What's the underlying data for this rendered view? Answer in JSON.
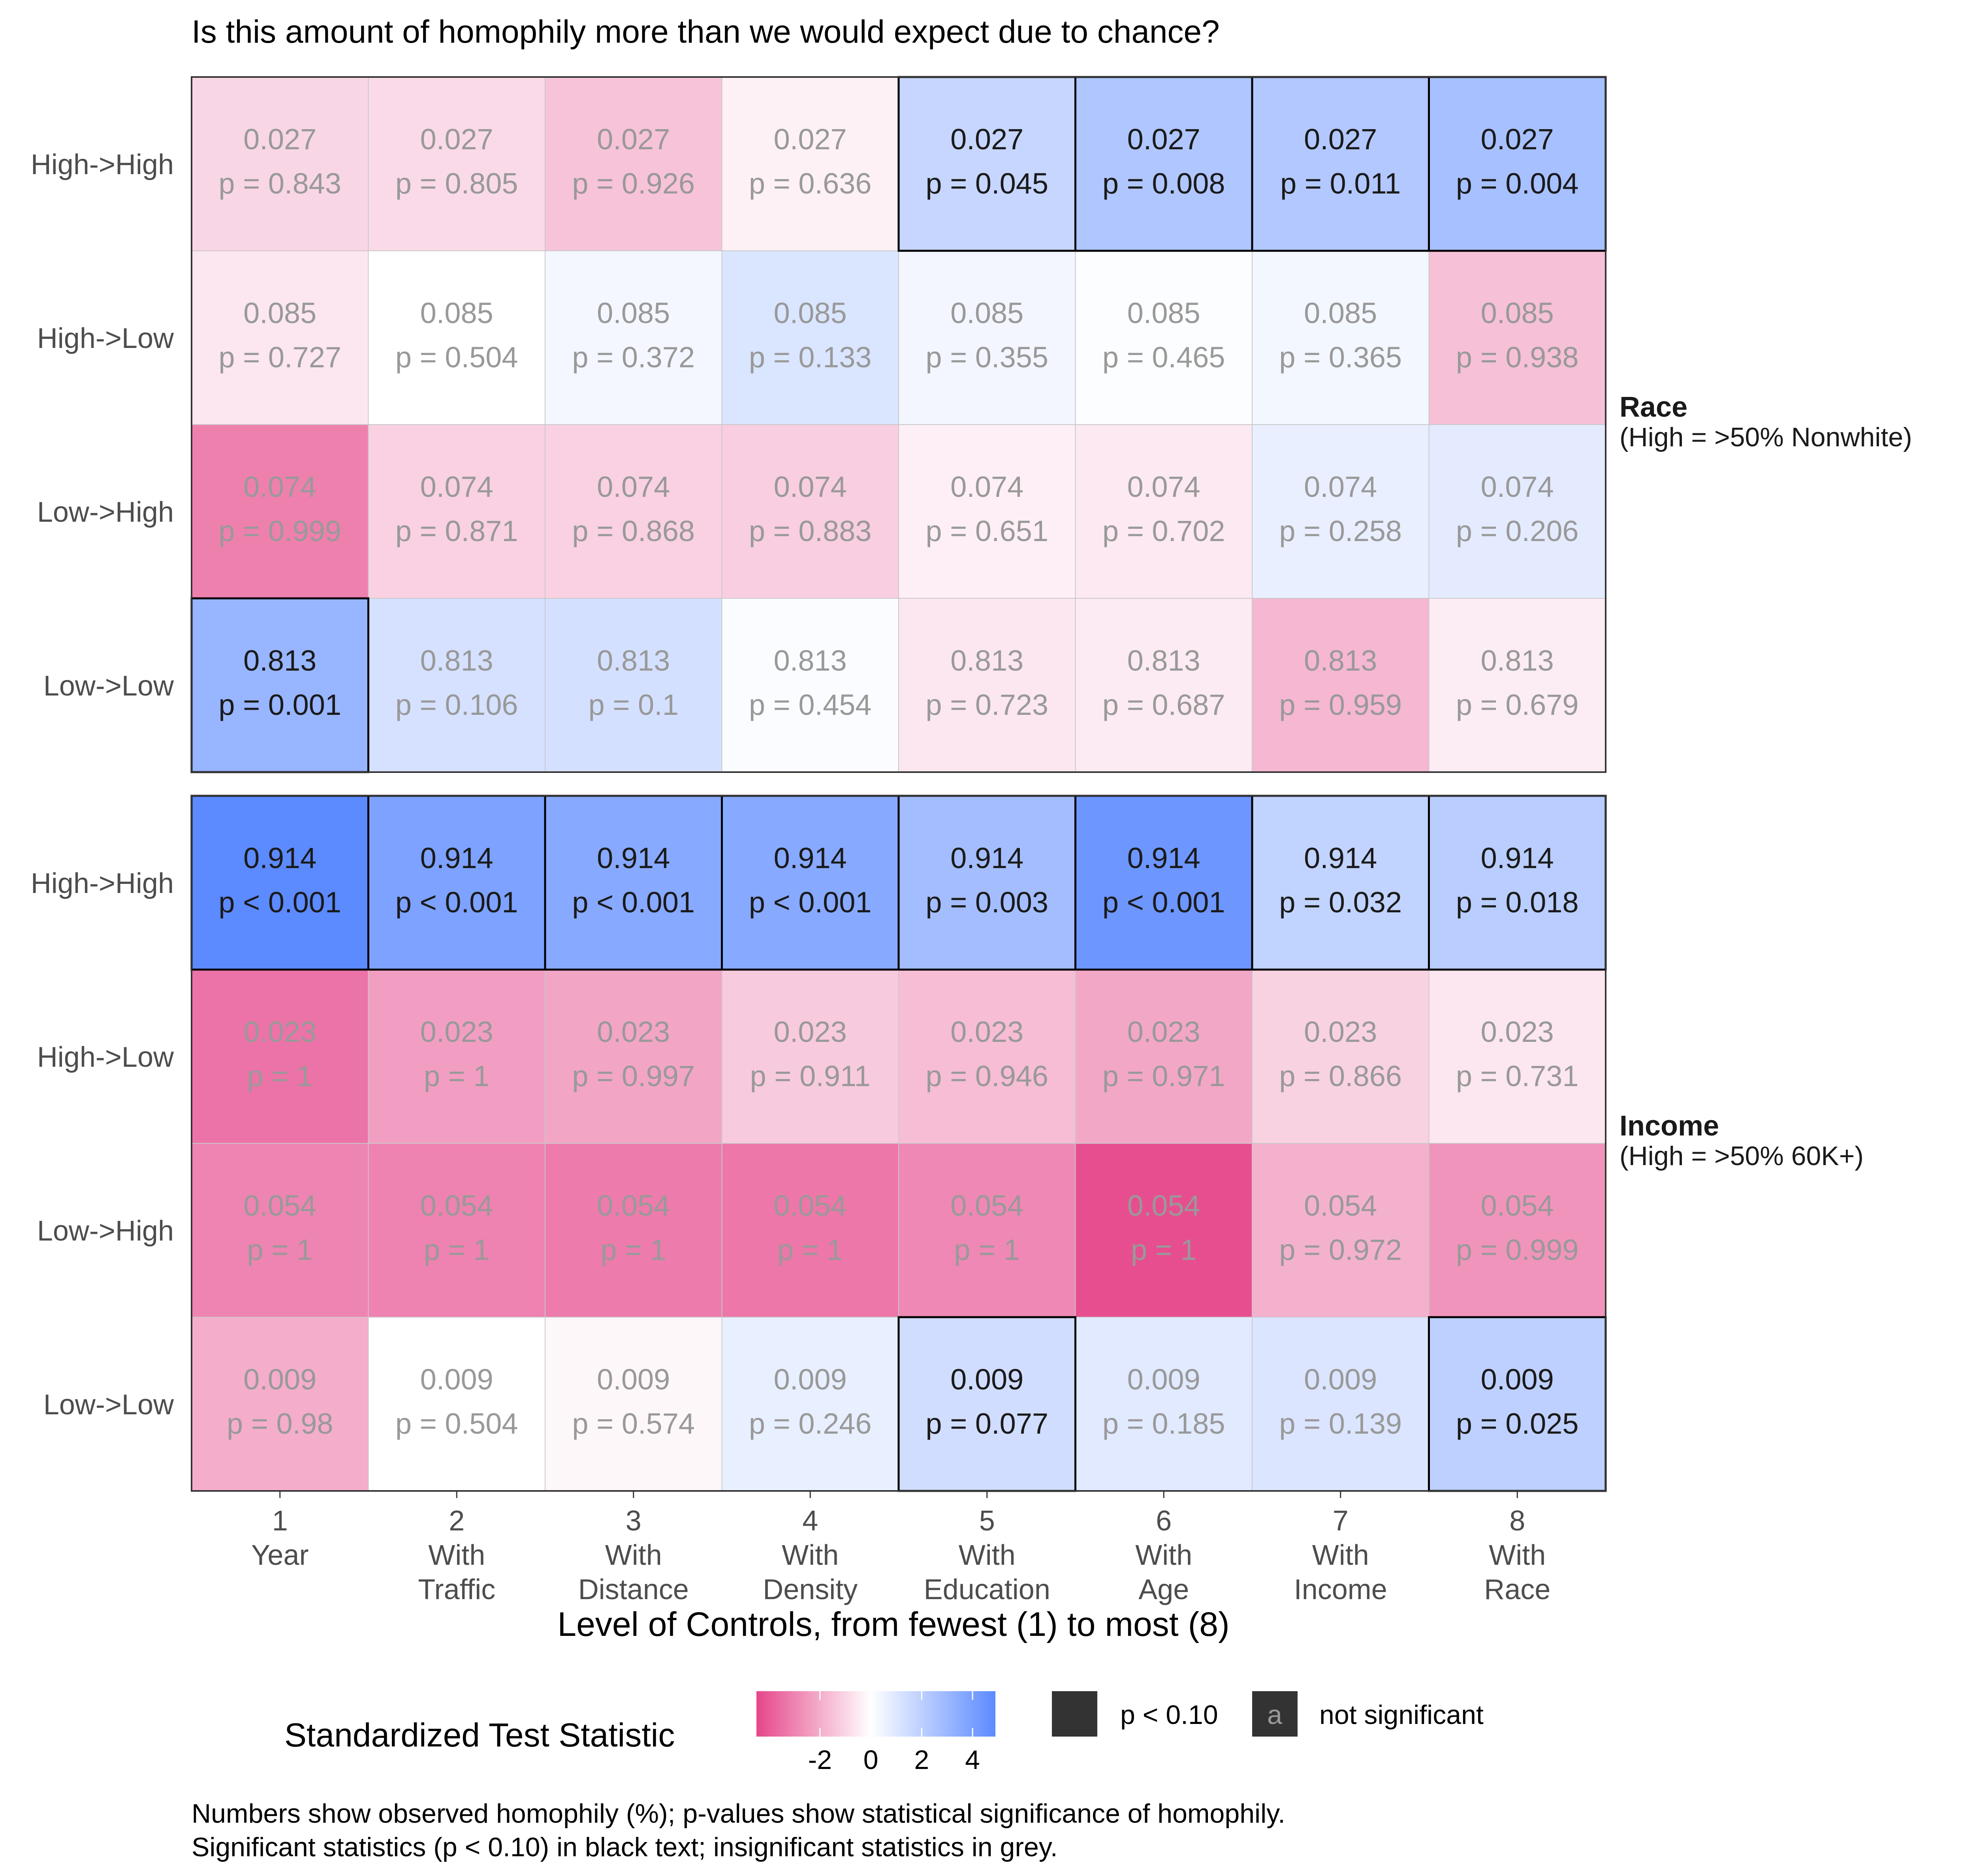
{
  "chart_data": {
    "type": "heatmap",
    "title": "Is this amount of homophily more than we would expect due to chance?",
    "xlabel": "Level of Controls, from fewest (1) to most (8)",
    "x_categories": [
      {
        "number": "1",
        "line1": "Year",
        "line2": ""
      },
      {
        "number": "2",
        "line1": "With",
        "line2": "Traffic"
      },
      {
        "number": "3",
        "line1": "With",
        "line2": "Distance"
      },
      {
        "number": "4",
        "line1": "With",
        "line2": "Density"
      },
      {
        "number": "5",
        "line1": "With",
        "line2": "Education"
      },
      {
        "number": "6",
        "line1": "With",
        "line2": "Age"
      },
      {
        "number": "7",
        "line1": "With",
        "line2": "Income"
      },
      {
        "number": "8",
        "line1": "With",
        "line2": "Race"
      }
    ],
    "panels": [
      {
        "facet_title": "Race",
        "facet_subtitle": "(High = >50% Nonwhite)",
        "rows": [
          {
            "label": "High->High",
            "homophily": "0.027",
            "p": [
              "p = 0.843",
              "p = 0.805",
              "p = 0.926",
              "p = 0.636",
              "p = 0.045",
              "p = 0.008",
              "p = 0.011",
              "p = 0.004"
            ],
            "stat": [
              -1.0,
              -0.9,
              -1.45,
              -0.35,
              1.7,
              2.4,
              2.3,
              2.65
            ],
            "sig": [
              false,
              false,
              false,
              false,
              true,
              true,
              true,
              true
            ]
          },
          {
            "label": "High->Low",
            "homophily": "0.085",
            "p": [
              "p = 0.727",
              "p = 0.504",
              "p = 0.372",
              "p = 0.133",
              "p = 0.355",
              "p = 0.465",
              "p = 0.365",
              "p = 0.938"
            ],
            "stat": [
              -0.6,
              -0.01,
              0.33,
              1.1,
              0.37,
              0.09,
              0.35,
              -1.54
            ],
            "sig": [
              false,
              false,
              false,
              false,
              false,
              false,
              false,
              false
            ]
          },
          {
            "label": "Low->High",
            "homophily": "0.074",
            "p": [
              "p = 0.999",
              "p = 0.871",
              "p = 0.868",
              "p = 0.883",
              "p = 0.651",
              "p = 0.702",
              "p = 0.258",
              "p = 0.206"
            ],
            "stat": [
              -3.1,
              -1.13,
              -1.12,
              -1.19,
              -0.39,
              -0.53,
              0.65,
              0.82
            ],
            "sig": [
              false,
              false,
              false,
              false,
              false,
              false,
              false,
              false
            ]
          },
          {
            "label": "Low->Low",
            "homophily": "0.813",
            "p": [
              "p = 0.001",
              "p = 0.106",
              "p = 0.1",
              "p = 0.454",
              "p = 0.723",
              "p = 0.687",
              "p = 0.959",
              "p = 0.679"
            ],
            "stat": [
              3.1,
              1.25,
              1.28,
              0.12,
              -0.59,
              -0.49,
              -1.74,
              -0.47
            ],
            "sig": [
              true,
              false,
              false,
              false,
              false,
              false,
              false,
              false
            ]
          }
        ]
      },
      {
        "facet_title": "Income",
        "facet_subtitle": "(High = >50% 60K+)",
        "rows": [
          {
            "label": "High->High",
            "homophily": "0.914",
            "p": [
              "p < 0.001",
              "p < 0.001",
              "p < 0.001",
              "p < 0.001",
              "p = 0.003",
              "p < 0.001",
              "p = 0.032",
              "p = 0.018"
            ],
            "stat": [
              4.9,
              3.9,
              3.6,
              3.6,
              2.75,
              4.4,
              1.85,
              2.1
            ],
            "sig": [
              true,
              true,
              true,
              true,
              true,
              true,
              true,
              true
            ]
          },
          {
            "label": "High->Low",
            "homophily": "0.023",
            "p": [
              "p = 1",
              "p = 1",
              "p = 0.997",
              "p = 0.911",
              "p = 0.946",
              "p = 0.971",
              "p = 0.866",
              "p = 0.731"
            ],
            "stat": [
              -3.4,
              -2.35,
              -2.2,
              -1.3,
              -1.6,
              -2.15,
              -1.1,
              -0.62
            ],
            "sig": [
              false,
              false,
              false,
              false,
              false,
              false,
              false,
              false
            ]
          },
          {
            "label": "Low->High",
            "homophily": "0.054",
            "p": [
              "p = 1",
              "p = 1",
              "p = 1",
              "p = 1",
              "p = 1",
              "p = 1",
              "p = 0.972",
              "p = 0.999"
            ],
            "stat": [
              -3.0,
              -3.05,
              -3.2,
              -3.3,
              -2.9,
              -4.3,
              -1.9,
              -2.6
            ],
            "sig": [
              false,
              false,
              false,
              false,
              false,
              false,
              false,
              false
            ]
          },
          {
            "label": "Low->Low",
            "homophily": "0.009",
            "p": [
              "p = 0.98",
              "p = 0.504",
              "p = 0.574",
              "p = 0.246",
              "p = 0.077",
              "p = 0.185",
              "p = 0.139",
              "p = 0.025"
            ],
            "stat": [
              -2.0,
              -0.01,
              -0.19,
              0.69,
              1.42,
              0.9,
              1.08,
              1.95
            ],
            "sig": [
              false,
              false,
              false,
              false,
              true,
              false,
              false,
              true
            ]
          }
        ]
      }
    ],
    "legend": {
      "title": "Standardized Test Statistic",
      "ticks": [
        "-2",
        "0",
        "2",
        "4"
      ],
      "tick_values": [
        -2,
        0,
        2,
        4
      ],
      "range": [
        -4.5,
        4.9
      ],
      "low_color": "#e6468a",
      "mid_color": "#ffffff",
      "high_color": "#5c8aff",
      "key_sig_label": "p < 0.10",
      "key_insig_letter": "a",
      "key_insig_label": "not significant"
    },
    "caption_lines": [
      "Numbers show observed homophily (%); p-values show statistical significance of homophily.",
      "Significant statistics (p < 0.10) in black text; insignificant statistics in grey."
    ],
    "colors": {
      "sig_text": "#1a1a1a",
      "insig_text": "#999999",
      "axis_text": "#4d4d4d"
    }
  }
}
